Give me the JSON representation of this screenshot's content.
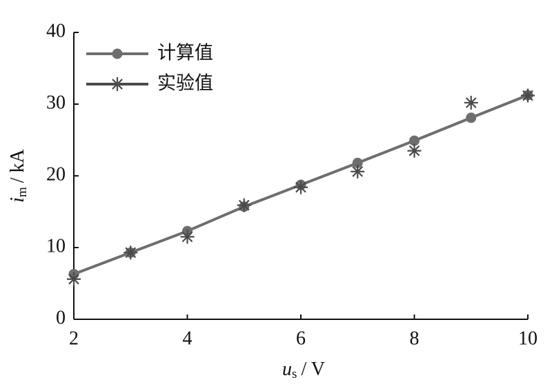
{
  "chart_data": {
    "type": "line",
    "x_label": {
      "symbol": "u",
      "subscript": "s",
      "unit": "/ V"
    },
    "y_label": {
      "symbol": "i",
      "subscript": "m",
      "unit": "/ kA"
    },
    "x": [
      2,
      3,
      4,
      5,
      6,
      7,
      8,
      9,
      10
    ],
    "series": [
      {
        "name": "计算值",
        "color": "#6e6e6e",
        "marker": "circle",
        "line": true,
        "values": [
          6.3,
          9.3,
          12.3,
          15.7,
          18.75,
          21.8,
          24.9,
          28.1,
          31.25
        ]
      },
      {
        "name": "实验值",
        "color": "#4a4a4a",
        "marker": "asterisk",
        "line": false,
        "values": [
          5.6,
          9.3,
          11.5,
          15.9,
          18.4,
          20.6,
          23.5,
          30.2,
          31.2
        ]
      }
    ],
    "xlim": [
      2,
      10
    ],
    "xticks": [
      2,
      4,
      6,
      8,
      10
    ],
    "ylim": [
      0,
      40
    ],
    "yticks": [
      0,
      10,
      20,
      30,
      40
    ],
    "grid": false,
    "legend": "top-left"
  }
}
